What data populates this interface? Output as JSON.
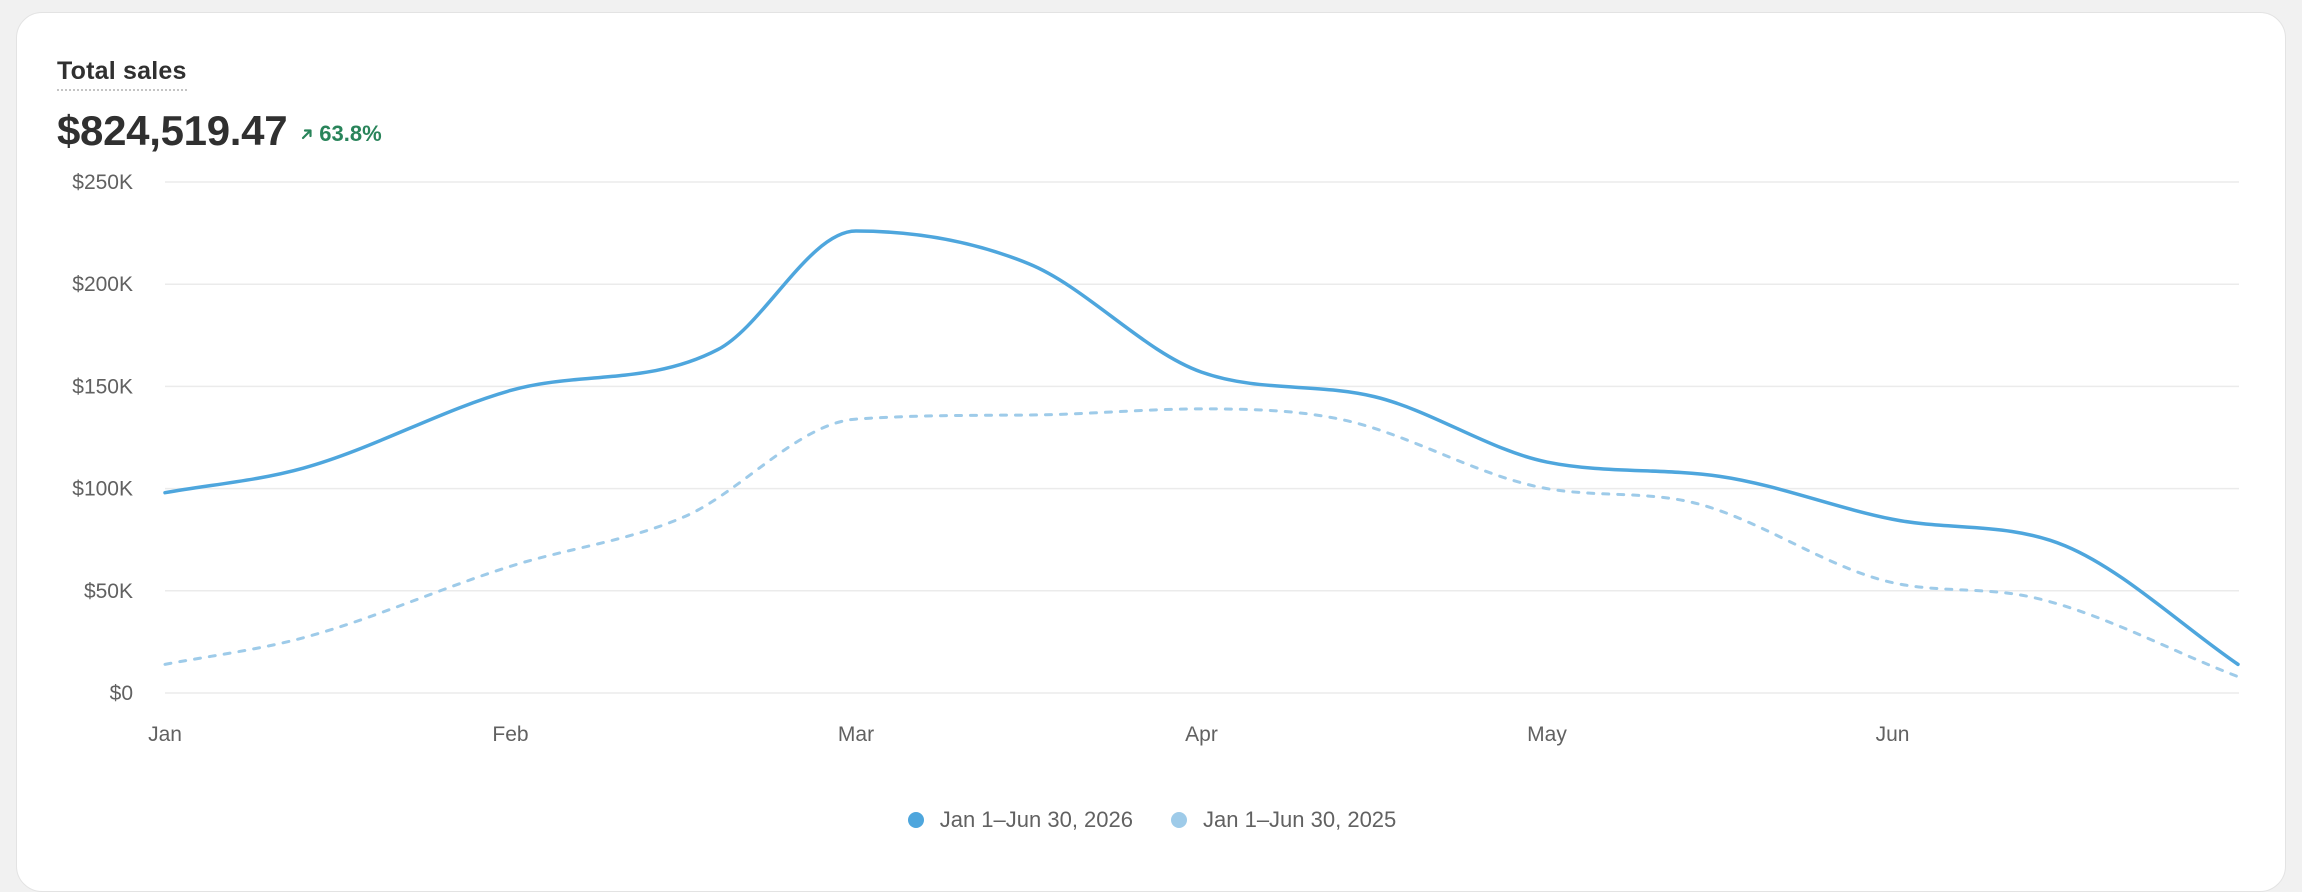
{
  "header": {
    "title": "Total sales",
    "total": "$824,519.47",
    "delta": "63.8%",
    "delta_icon": "arrow-up-right-icon",
    "delta_color": "#29845a"
  },
  "colors": {
    "current": "#4ea6dd",
    "previous": "#9ecbe9",
    "grid": "#ebebeb",
    "text": "#616161"
  },
  "chart_data": {
    "type": "line",
    "x_labels": [
      "Jan",
      "Feb",
      "Mar",
      "Apr",
      "May",
      "Jun"
    ],
    "y_ticks": [
      "$0",
      "$50K",
      "$100K",
      "$150K",
      "$200K",
      "$250K"
    ],
    "ylim": [
      0,
      250000
    ],
    "grid": true,
    "legend_position": "bottom-center",
    "series": [
      {
        "name": "Jan 1–Jun 30, 2026",
        "style": "solid",
        "x": [
          0,
          0.4,
          1,
          1.6,
          2,
          2.5,
          3,
          3.5,
          4,
          4.5,
          5,
          5.5,
          6
        ],
        "values": [
          98000,
          110000,
          148000,
          168000,
          226000,
          210000,
          157000,
          145000,
          113000,
          106000,
          85000,
          72000,
          14000
        ]
      },
      {
        "name": "Jan 1–Jun 30, 2025",
        "style": "dashed",
        "x": [
          0,
          0.4,
          1,
          1.5,
          2,
          2.5,
          3,
          3.4,
          4,
          4.4,
          5,
          5.4,
          6
        ],
        "values": [
          14000,
          27000,
          62000,
          86000,
          134000,
          136000,
          139000,
          134000,
          100000,
          94000,
          54000,
          47000,
          8000
        ]
      }
    ]
  }
}
